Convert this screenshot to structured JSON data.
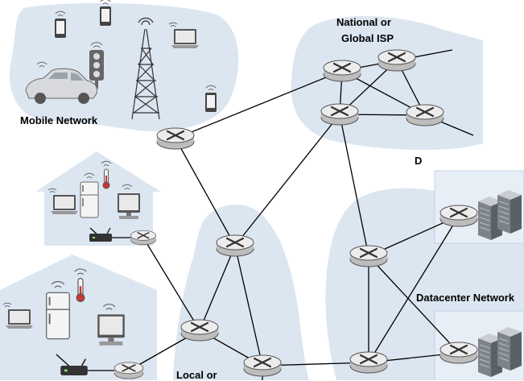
{
  "diagram": {
    "labels": {
      "mobile_network": "Mobile Network",
      "global_isp_line1": "National or",
      "global_isp_line2": "Global ISP",
      "datacenter_network_top": "D",
      "datacenter_network": "Datacenter Network",
      "local_isp": "Local or"
    }
  },
  "colors": {
    "region_fill": "#dce6f1",
    "router_fill": "#e4e4e4",
    "router_stroke": "#555555",
    "link": "#000000",
    "server": "#8a8f96"
  },
  "icons": {
    "router": "router-icon",
    "phone": "smartphone-icon",
    "laptop": "laptop-icon",
    "car": "car-icon",
    "traffic_light": "traffic-light-icon",
    "tower": "cell-tower-icon",
    "fridge": "refrigerator-icon",
    "thermometer": "thermometer-icon",
    "desktop": "desktop-computer-icon",
    "modem": "modem-icon",
    "server_rack": "server-rack-icon"
  }
}
